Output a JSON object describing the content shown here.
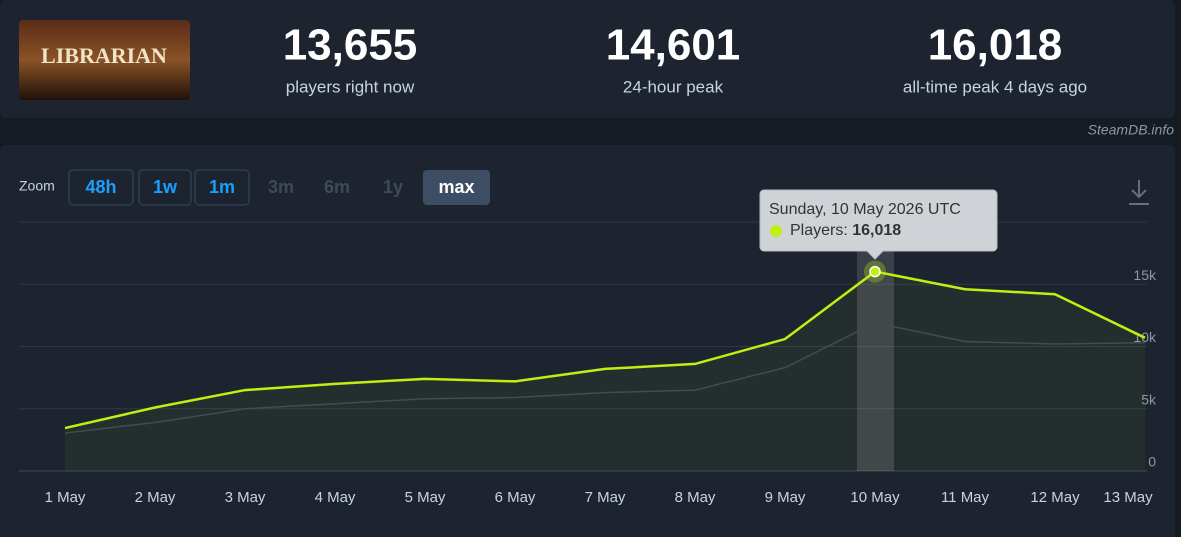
{
  "header": {
    "logo_text": "LIBRARIAN",
    "stats": [
      {
        "value": {
          "value": 13655,
          "label": "13,655"
        },
        "caption": "players right now"
      },
      {
        "value": {
          "value": 14601,
          "label": "14,601"
        },
        "caption": "24-hour peak"
      },
      {
        "value": {
          "value": 16018,
          "label": "16,018"
        },
        "caption": "all-time peak 4 days ago"
      }
    ]
  },
  "watermark": "SteamDB.info",
  "zoom": {
    "label": "Zoom",
    "buttons": [
      {
        "label": "48h",
        "state": "link"
      },
      {
        "label": "1w",
        "state": "link"
      },
      {
        "label": "1m",
        "state": "link"
      },
      {
        "label": "3m",
        "state": "disabled"
      },
      {
        "label": "6m",
        "state": "disabled"
      },
      {
        "label": "1y",
        "state": "disabled"
      },
      {
        "label": "max",
        "state": "selected"
      }
    ]
  },
  "chart_data": {
    "type": "line",
    "categories": [
      "1 May",
      "2 May",
      "3 May",
      "4 May",
      "5 May",
      "6 May",
      "7 May",
      "8 May",
      "9 May",
      "10 May",
      "11 May",
      "12 May",
      "13 May"
    ],
    "series": [
      {
        "color": "#3a4452",
        "values": [
          3050,
          3900,
          5000,
          5400,
          5800,
          5900,
          6300,
          6500,
          8300,
          11900,
          10400,
          10200,
          10300
        ]
      },
      {
        "name": "Players:",
        "color": "#bef011",
        "values": [
          3450,
          5100,
          6500,
          7000,
          7400,
          7200,
          8200,
          8600,
          10600,
          16018,
          14600,
          14200,
          10700
        ]
      }
    ],
    "ylim": [
      0,
      20000
    ],
    "yticks": [
      0,
      {
        "value": 5000,
        "label": "5k"
      },
      {
        "value": 10000,
        "label": "10k"
      },
      {
        "value": 15000,
        "label": "15k"
      }
    ],
    "grid": true,
    "tooltip": {
      "title": "Sunday, 10 May 2026 UTC",
      "value": {
        "value": 16018,
        "label": "16,018"
      }
    }
  }
}
